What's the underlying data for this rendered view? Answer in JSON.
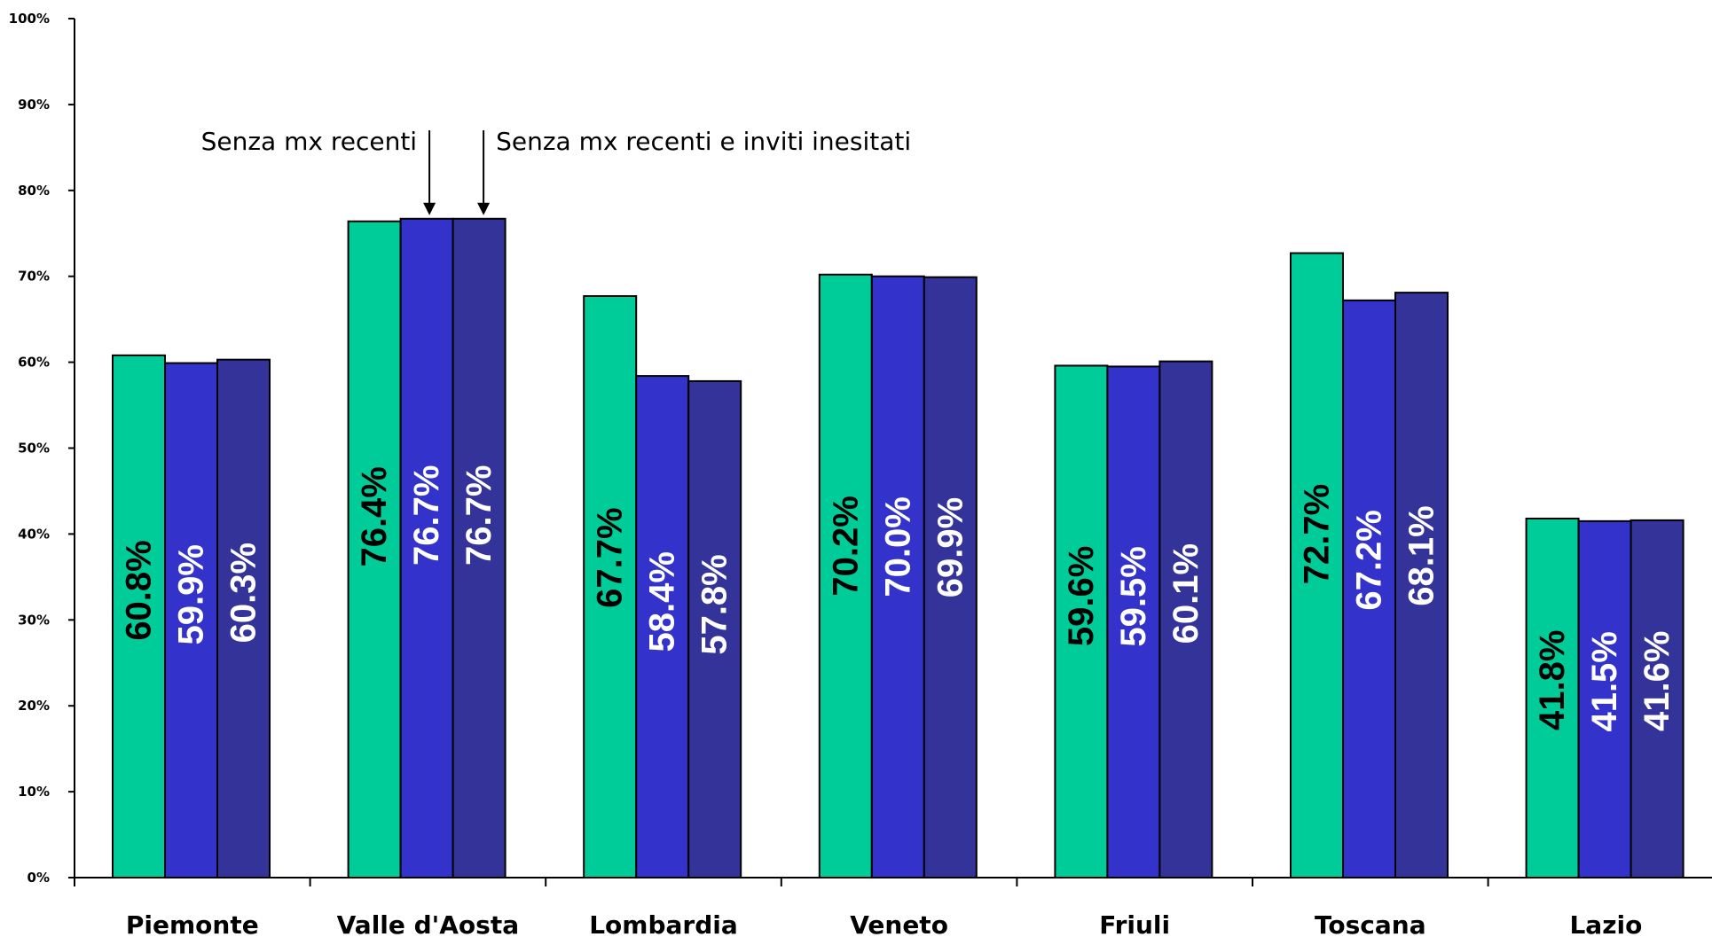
{
  "chart_data": {
    "type": "bar",
    "title": "",
    "xlabel": "",
    "ylabel": "",
    "ylim": [
      0,
      100
    ],
    "ytick_labels": [
      "0%",
      "10%",
      "20%",
      "30%",
      "40%",
      "50%",
      "60%",
      "70%",
      "80%",
      "90%",
      "100%"
    ],
    "categories": [
      "Piemonte",
      "Valle d'Aosta",
      "Lombardia",
      "Veneto",
      "Friuli",
      "Toscana",
      "Lazio"
    ],
    "series": [
      {
        "color": "#00cc99",
        "label_color": "#000000",
        "values": [
          60.8,
          76.4,
          67.7,
          70.2,
          59.6,
          72.7,
          41.8
        ],
        "labels": [
          "60.8%",
          "76.4%",
          "67.7%",
          "70.2%",
          "59.6%",
          "72.7%",
          "41.8%"
        ]
      },
      {
        "color": "#3333cc",
        "label_color": "#ffffff",
        "values": [
          59.9,
          76.7,
          58.4,
          70.0,
          59.5,
          67.2,
          41.5
        ],
        "labels": [
          "59.9%",
          "76.7%",
          "58.4%",
          "70.0%",
          "59.5%",
          "67.2%",
          "41.5%"
        ]
      },
      {
        "color": "#333399",
        "label_color": "#ffffff",
        "values": [
          60.3,
          76.7,
          57.8,
          69.9,
          60.1,
          68.1,
          41.6
        ],
        "labels": [
          "60.3%",
          "76.7%",
          "57.8%",
          "69.9%",
          "60.1%",
          "68.1%",
          "41.6%"
        ]
      }
    ],
    "grid": false,
    "legend": "none",
    "annotations": [
      {
        "text": "Senza mx recenti",
        "category": "Valle d'Aosta",
        "series_index": 1
      },
      {
        "text": "Senza mx recenti e inviti inesitati",
        "category": "Valle d'Aosta",
        "series_index": 2
      }
    ]
  }
}
